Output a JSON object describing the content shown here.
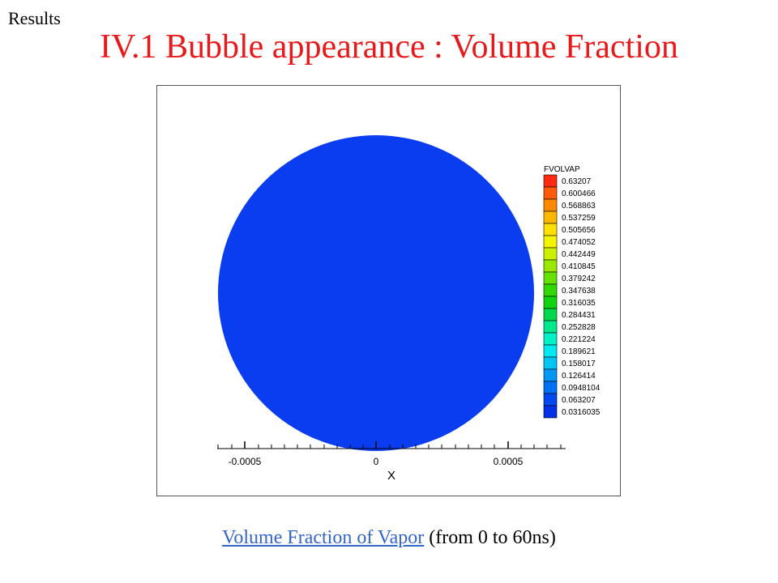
{
  "header": {
    "section_label": "Results",
    "title": "IV.1 Bubble appearance : Volume Fraction"
  },
  "plot": {
    "fill_color": "#0b3df0",
    "legend": {
      "title": "FVOLVAP",
      "entries": [
        {
          "label": "0.63207",
          "color": "#ff2a12"
        },
        {
          "label": "0.600466",
          "color": "#ff5a08"
        },
        {
          "label": "0.568863",
          "color": "#ff8a00"
        },
        {
          "label": "0.537259",
          "color": "#ffb800"
        },
        {
          "label": "0.505656",
          "color": "#ffe000"
        },
        {
          "label": "0.474052",
          "color": "#f4f400"
        },
        {
          "label": "0.442449",
          "color": "#ccf000"
        },
        {
          "label": "0.410845",
          "color": "#99e800"
        },
        {
          "label": "0.379242",
          "color": "#66e000"
        },
        {
          "label": "0.347638",
          "color": "#33d800"
        },
        {
          "label": "0.316035",
          "color": "#10d410"
        },
        {
          "label": "0.284431",
          "color": "#00d84c"
        },
        {
          "label": "0.252828",
          "color": "#00e88c"
        },
        {
          "label": "0.221224",
          "color": "#00f0c8"
        },
        {
          "label": "0.189621",
          "color": "#00e8f0"
        },
        {
          "label": "0.158017",
          "color": "#00c4f4"
        },
        {
          "label": "0.126414",
          "color": "#0098f4"
        },
        {
          "label": "0.0948104",
          "color": "#0070f4"
        },
        {
          "label": "0.063207",
          "color": "#0048f0"
        },
        {
          "label": "0.0316035",
          "color": "#0030e8"
        }
      ]
    },
    "x_axis": {
      "label": "X",
      "ticks": [
        "-0.0005",
        "0",
        "0.0005"
      ]
    }
  },
  "caption": {
    "link_text": "Volume Fraction of Vapor",
    "rest_text": " (from 0 to 60ns)"
  }
}
